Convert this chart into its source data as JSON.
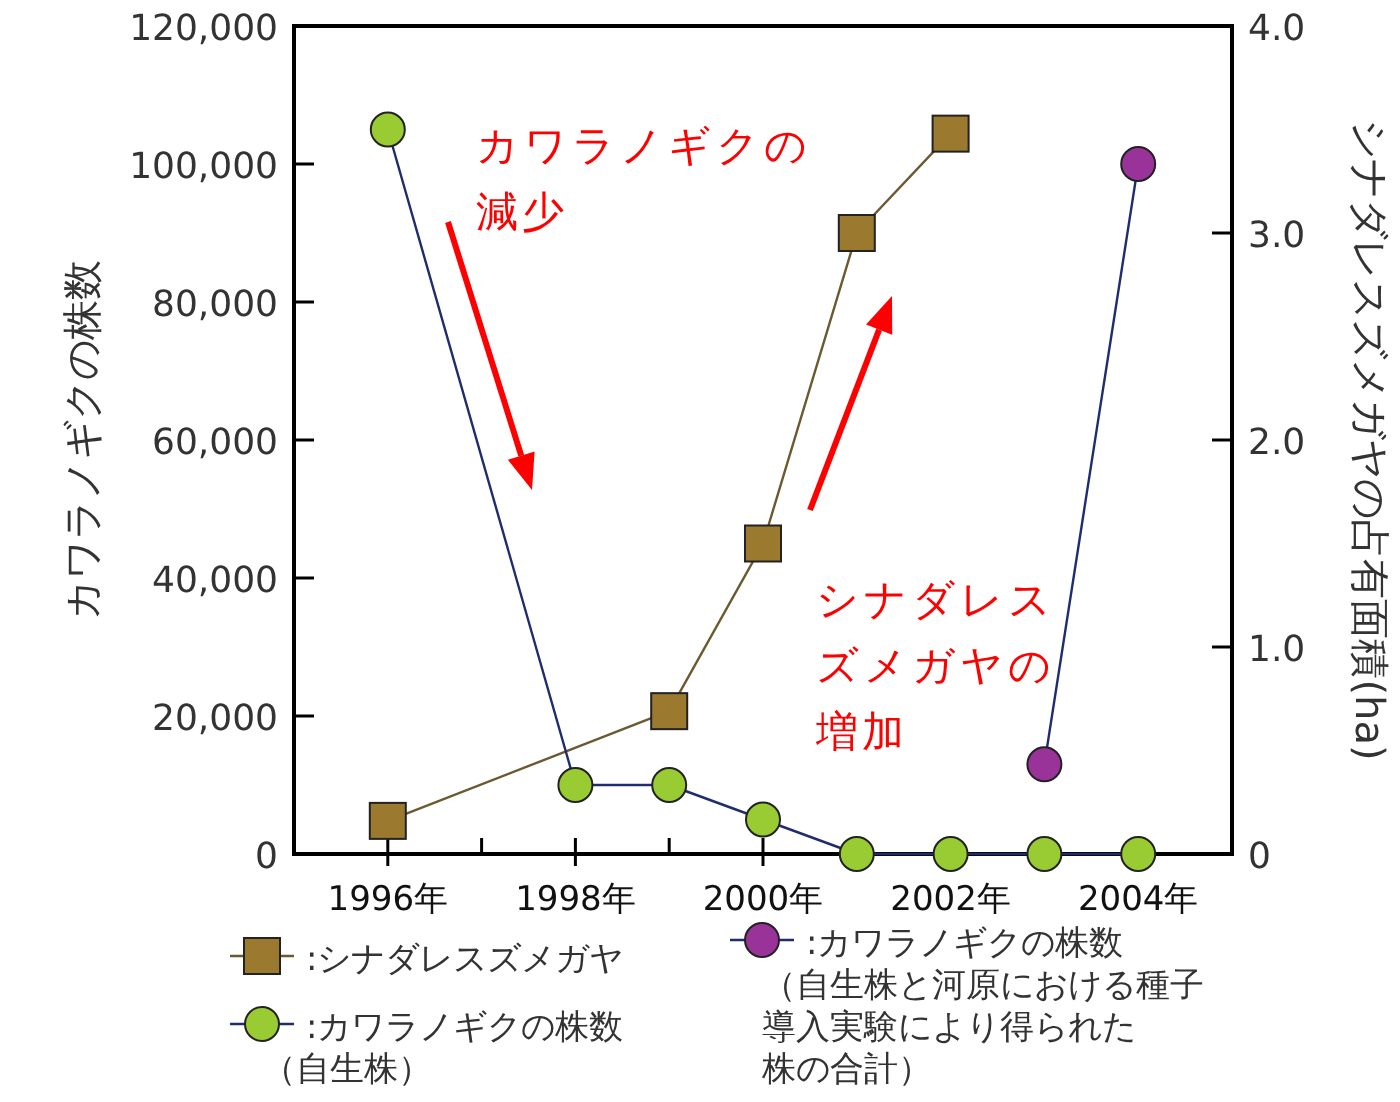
{
  "chart_data": {
    "type": "line",
    "xlim": [
      1995,
      2005
    ],
    "xticks": [
      {
        "value": 1996,
        "label": "1996年"
      },
      {
        "value": 1997,
        "label": null
      },
      {
        "value": 1998,
        "label": "1998年"
      },
      {
        "value": 1999,
        "label": null
      },
      {
        "value": 2000,
        "label": "2000年"
      },
      {
        "value": 2001,
        "label": null
      },
      {
        "value": 2002,
        "label": "2002年"
      },
      {
        "value": 2003,
        "label": null
      },
      {
        "value": 2004,
        "label": "2004年"
      }
    ],
    "ylim": [
      0,
      120000
    ],
    "yticks": [
      {
        "value": 0,
        "label": "0"
      },
      {
        "value": 20000,
        "label": "20,000"
      },
      {
        "value": 40000,
        "label": "40,000"
      },
      {
        "value": 60000,
        "label": "60,000"
      },
      {
        "value": 80000,
        "label": "80,000"
      },
      {
        "value": 100000,
        "label": "100,000"
      },
      {
        "value": 120000,
        "label": "120,000"
      }
    ],
    "y2lim": [
      0,
      4
    ],
    "y2ticks": [
      {
        "value": 0,
        "label": "0"
      },
      {
        "value": 1,
        "label": "1.0"
      },
      {
        "value": 2,
        "label": "2.0"
      },
      {
        "value": 3,
        "label": "3.0"
      },
      {
        "value": 4,
        "label": "4.0"
      }
    ],
    "ylabel": "カワラノギクの株数",
    "y2label": "シナダレスズメガヤの占有面積(ha)",
    "legend": "bottom",
    "grid": false,
    "series": [
      {
        "name": ":シナダレスズメガヤ",
        "axis": "y2",
        "marker": "square",
        "color": "#9b7a2f",
        "x": [
          1996,
          1999,
          2000,
          2001,
          2002
        ],
        "values": [
          0.16,
          0.69,
          1.5,
          3.0,
          3.48
        ]
      },
      {
        "name": ":カワラノギクの株数（自生株）",
        "axis": "y",
        "marker": "circle",
        "color": "#99cc33",
        "x": [
          1996,
          1998,
          1999,
          2000,
          2001,
          2002,
          2003,
          2004
        ],
        "values": [
          105000,
          10000,
          10000,
          5000,
          0,
          0,
          0,
          0
        ]
      },
      {
        "name": ":カワラノギクの株数（自生株と河原における種子導入実験により得られた株の合計）",
        "axis": "y",
        "marker": "circle",
        "color": "#993399",
        "x": [
          2003,
          2004
        ],
        "values": [
          13000,
          100000
        ]
      }
    ],
    "annotations": [
      "カワラノギクの減少",
      "シナダレスズメガヤの増加"
    ]
  }
}
